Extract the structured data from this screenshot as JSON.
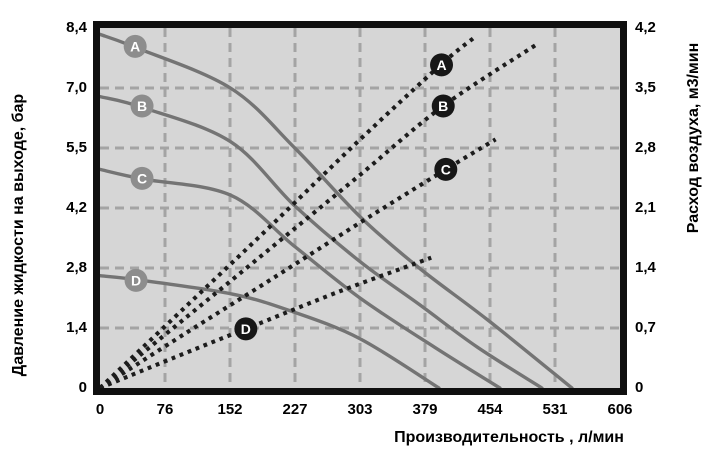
{
  "colors": {
    "page_bg": "#ffffff",
    "plot_bg": "#d6d6d6",
    "grid": "#a4a4a4",
    "border": "#0f0f0f",
    "pressure_curve": "#747474",
    "air_curve": "#1c1c1c",
    "badge_gray_fill": "#8d8d8d",
    "badge_black_fill": "#171717",
    "badge_text": "#ffffff",
    "tick_text": "#000000"
  },
  "chart_data": {
    "type": "line",
    "grid": "dashed",
    "plot_divisions": {
      "columns": 8,
      "rows": 6
    },
    "x_axis": {
      "title": "Производительность , л/мин",
      "tick_labels": [
        "0",
        "76",
        "152",
        "227",
        "303",
        "379",
        "454",
        "531",
        "606"
      ],
      "tick_values": [
        0,
        76,
        152,
        227,
        303,
        379,
        454,
        531,
        606
      ],
      "range": [
        0,
        606
      ]
    },
    "y_axis_left": {
      "title": "Давление жидкости на выходе, бар",
      "tick_labels": [
        "8,4",
        "7,0",
        "5,5",
        "4,2",
        "2,8",
        "1,4",
        "0"
      ],
      "tick_values": [
        8.4,
        7.0,
        5.5,
        4.2,
        2.8,
        1.4,
        0
      ],
      "range": [
        0,
        8.4
      ]
    },
    "y_axis_right": {
      "title": "Расход воздуха, м3/мин",
      "tick_labels": [
        "4,2",
        "3,5",
        "2,8",
        "2,1",
        "1,4",
        "0,7",
        "0"
      ],
      "tick_values": [
        4.2,
        3.5,
        2.8,
        2.1,
        1.4,
        0.7,
        0
      ],
      "range": [
        0,
        4.2
      ]
    },
    "series": [
      {
        "name": "A",
        "kind": "pressure",
        "line_style": "solid",
        "axis": "left",
        "unit": "бар",
        "points": [
          [
            0,
            8.25
          ],
          [
            41,
            7.95
          ],
          [
            152,
            7.0
          ],
          [
            227,
            5.6
          ],
          [
            303,
            4.0
          ],
          [
            372,
            2.8
          ],
          [
            451,
            1.6
          ],
          [
            550,
            0
          ]
        ],
        "badge": {
          "style": "gray",
          "x": 41,
          "y": 7.97
        }
      },
      {
        "name": "B",
        "kind": "pressure",
        "line_style": "solid",
        "axis": "left",
        "unit": "бар",
        "points": [
          [
            0,
            6.8
          ],
          [
            49,
            6.55
          ],
          [
            152,
            5.75
          ],
          [
            227,
            4.25
          ],
          [
            303,
            2.95
          ],
          [
            372,
            1.95
          ],
          [
            440,
            0.95
          ],
          [
            515,
            0
          ]
        ],
        "badge": {
          "style": "gray",
          "x": 49,
          "y": 6.58
        }
      },
      {
        "name": "C",
        "kind": "pressure",
        "line_style": "solid",
        "axis": "left",
        "unit": "бар",
        "points": [
          [
            0,
            5.1
          ],
          [
            49,
            4.88
          ],
          [
            152,
            4.5
          ],
          [
            227,
            3.3
          ],
          [
            303,
            2.1
          ],
          [
            390,
            0.95
          ],
          [
            466,
            0
          ]
        ],
        "badge": {
          "style": "gray",
          "x": 49,
          "y": 4.89
        }
      },
      {
        "name": "D",
        "kind": "pressure",
        "line_style": "solid",
        "axis": "left",
        "unit": "бар",
        "points": [
          [
            0,
            2.62
          ],
          [
            42,
            2.53
          ],
          [
            152,
            2.2
          ],
          [
            222,
            1.8
          ],
          [
            303,
            1.15
          ],
          [
            395,
            0
          ]
        ],
        "badge": {
          "style": "gray",
          "x": 42,
          "y": 2.51
        }
      },
      {
        "name": "A",
        "kind": "air",
        "line_style": "dotted",
        "axis": "right",
        "unit": "м3/мин",
        "points": [
          [
            0,
            0
          ],
          [
            100,
            0.95
          ],
          [
            200,
            1.9
          ],
          [
            300,
            2.87
          ],
          [
            397,
            3.77
          ],
          [
            435,
            4.08
          ]
        ],
        "badge": {
          "style": "black",
          "x": 398,
          "y": 3.77
        }
      },
      {
        "name": "B",
        "kind": "air",
        "line_style": "dotted",
        "axis": "right",
        "unit": "м3/мин",
        "points": [
          [
            0,
            0
          ],
          [
            100,
            0.82
          ],
          [
            200,
            1.64
          ],
          [
            300,
            2.46
          ],
          [
            400,
            3.29
          ],
          [
            509,
            4.01
          ]
        ],
        "badge": {
          "style": "black",
          "x": 400,
          "y": 3.29
        }
      },
      {
        "name": "C",
        "kind": "air",
        "line_style": "dotted",
        "axis": "right",
        "unit": "м3/мин",
        "points": [
          [
            0,
            0
          ],
          [
            100,
            0.64
          ],
          [
            200,
            1.27
          ],
          [
            300,
            1.91
          ],
          [
            403,
            2.55
          ],
          [
            461,
            2.9
          ]
        ],
        "badge": {
          "style": "black",
          "x": 403,
          "y": 2.55
        }
      },
      {
        "name": "D",
        "kind": "air",
        "line_style": "dotted",
        "axis": "right",
        "unit": "м3/мин",
        "points": [
          [
            0,
            0
          ],
          [
            100,
            0.41
          ],
          [
            170,
            0.69
          ],
          [
            280,
            1.13
          ],
          [
            386,
            1.52
          ]
        ],
        "badge": {
          "style": "black",
          "x": 170,
          "y": 0.69
        }
      }
    ]
  }
}
